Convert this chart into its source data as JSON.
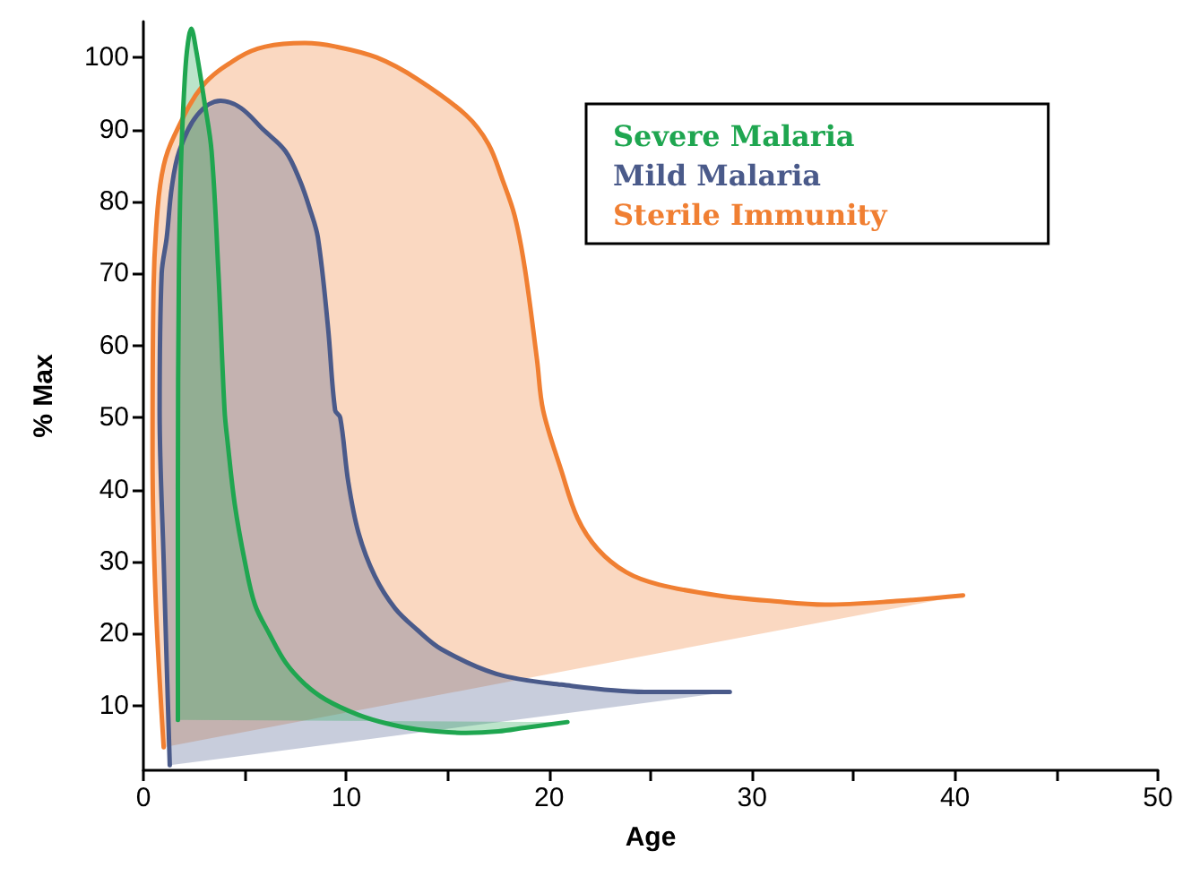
{
  "chart_data": {
    "type": "area",
    "xlabel": "Age",
    "ylabel": "% Max",
    "xlim": [
      0,
      50
    ],
    "ylim": [
      1,
      105
    ],
    "xticks": [
      0,
      {
        "value": 5,
        "label": null
      },
      10,
      {
        "value": 15,
        "label": null
      },
      20,
      {
        "value": 25,
        "label": null
      },
      30,
      {
        "value": 35,
        "label": null
      },
      40,
      {
        "value": 45,
        "label": null
      },
      50
    ],
    "yticks": [
      10,
      20,
      30,
      40,
      50,
      60,
      70,
      80,
      90,
      100
    ],
    "grid": false,
    "legend": "top right",
    "marker": "none",
    "line_style": "solid",
    "series": [
      {
        "name": "Severe Malaria",
        "color": "#1fa650",
        "x": [
          1.7,
          1.7,
          1.75,
          1.85,
          2.0,
          2.15,
          2.36,
          2.6,
          3.0,
          3.36,
          3.7,
          4.0,
          4.15,
          4.5,
          5.0,
          5.5,
          6.2,
          7.0,
          7.95,
          9.0,
          10.6,
          12.0,
          13.5,
          15.9,
          17.5,
          18.8,
          20.9
        ],
        "values": [
          8,
          40,
          70,
          85,
          95,
          101,
          104,
          101,
          94,
          87,
          70,
          51,
          46.6,
          38,
          30,
          24,
          20,
          16,
          13,
          10.8,
          8.7,
          7.5,
          6.7,
          6.2,
          6.4,
          6.9,
          7.7
        ]
      },
      {
        "name": "Mild Malaria",
        "color": "#4a5a8a",
        "x": [
          1.3,
          1.0,
          0.8,
          0.9,
          1.15,
          1.4,
          1.77,
          2.65,
          3.8,
          4.8,
          5.9,
          7.0,
          7.7,
          8.2,
          8.6,
          9.1,
          9.45,
          9.7,
          10.1,
          10.6,
          11.4,
          12.4,
          13.5,
          14.7,
          17.4,
          20.6,
          24.7,
          28.9
        ],
        "values": [
          1.7,
          30,
          51,
          70,
          75,
          82,
          87,
          92,
          94,
          93,
          90,
          87,
          83,
          79,
          75,
          62.5,
          51,
          50,
          41,
          34,
          28,
          23.5,
          20.5,
          17.8,
          14.4,
          12.9,
          11.9,
          11.9
        ]
      },
      {
        "name": "Sterile Immunity",
        "color": "#f07f32",
        "x": [
          1.0,
          0.6,
          0.45,
          0.5,
          0.7,
          1.0,
          1.5,
          2.9,
          4.7,
          6.0,
          7.95,
          9.5,
          11.5,
          13.5,
          15.9,
          17.0,
          17.7,
          18.3,
          18.8,
          19.4,
          19.7,
          20.6,
          21.4,
          22.4,
          23.8,
          25.4,
          28.3,
          31.0,
          33.6,
          37.1,
          40.4
        ],
        "values": [
          4.2,
          25,
          45,
          68,
          79,
          85,
          89,
          96,
          100,
          101.5,
          102,
          101.5,
          100,
          97,
          92,
          88,
          83,
          78,
          70.7,
          58,
          51,
          42.6,
          36,
          31.7,
          28.5,
          26.8,
          25.3,
          24.5,
          24,
          24.5,
          25.3
        ]
      }
    ]
  }
}
